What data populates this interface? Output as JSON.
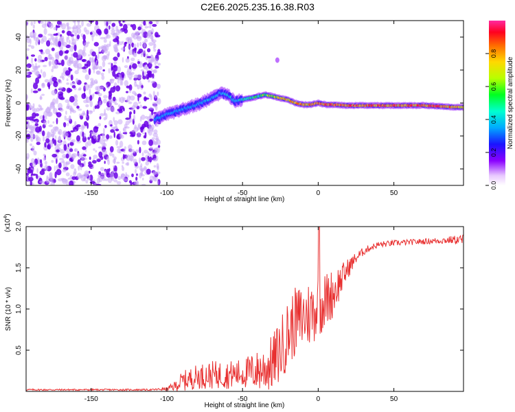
{
  "title": "C2E6.2025.235.16.38.R03",
  "colors": {
    "snr_line": "#e83030",
    "spectrum_purple": "#6a00e6",
    "spectrum_light": "#c9a8f5"
  },
  "chart_data": [
    {
      "type": "heatmap",
      "name": "spectrogram",
      "xlabel": "Height of straight line (km)",
      "ylabel": "Frequency (Hz)",
      "xlim": [
        -193,
        96
      ],
      "ylim": [
        -50,
        50
      ],
      "x_ticks": [
        -150,
        -100,
        -50,
        0,
        50
      ],
      "x_tick_labels": [
        "-150",
        "-100",
        "-50",
        "0",
        "50"
      ],
      "y_ticks": [
        -40,
        -20,
        0,
        20,
        40
      ],
      "y_tick_labels": [
        "-40",
        "-20",
        "0",
        "20",
        "40"
      ],
      "noise_region_x": [
        -193,
        -105
      ],
      "signal_track": {
        "x": [
          -108,
          -100,
          -90,
          -80,
          -70,
          -65,
          -60,
          -55,
          -50,
          -45,
          -40,
          -35,
          -30,
          -25,
          -20,
          -15,
          -10,
          -5,
          0,
          5,
          10,
          20,
          30,
          40,
          50,
          60,
          70,
          80,
          90,
          96
        ],
        "freq": [
          -10,
          -7,
          -4,
          -1,
          3,
          6,
          5,
          1,
          2,
          3,
          4,
          5,
          4,
          3,
          2,
          0,
          -1,
          -1,
          0,
          -1,
          -1,
          -1.5,
          -1.5,
          -1.5,
          -1.5,
          -1.5,
          -1.5,
          -2,
          -2.5,
          -2.5
        ],
        "amplitude": [
          0.25,
          0.3,
          0.35,
          0.4,
          0.45,
          0.45,
          0.5,
          0.5,
          0.55,
          0.6,
          0.6,
          0.65,
          0.7,
          0.75,
          0.8,
          0.8,
          0.85,
          0.85,
          0.9,
          0.9,
          0.9,
          0.9,
          0.9,
          0.9,
          0.9,
          0.9,
          0.9,
          0.9,
          0.85,
          0.85
        ]
      },
      "colorbar": {
        "label": "Normalized spectral amplitude",
        "range": [
          0,
          1
        ],
        "ticks": [
          0.0,
          0.2,
          0.4,
          0.6,
          0.8
        ],
        "tick_labels": [
          "0.0",
          "0.2",
          "0.4",
          "0.6",
          "0.8"
        ]
      }
    },
    {
      "type": "line",
      "name": "snr",
      "xlabel": "Height of straight line (km)",
      "ylabel": "SNR (10 * v/v)",
      "scale_label": "(x10",
      "scale_exponent": "4",
      "scale_close": ")",
      "xlim": [
        -193,
        96
      ],
      "ylim": [
        0,
        2.0
      ],
      "x_ticks": [
        -150,
        -100,
        -50,
        0,
        50
      ],
      "x_tick_labels": [
        "-150",
        "-100",
        "-50",
        "0",
        "50"
      ],
      "y_ticks": [
        0.5,
        1.0,
        1.5,
        2.0
      ],
      "y_tick_labels": [
        "0.5",
        "1.0",
        "1.5",
        "2.0"
      ],
      "baseline_x": [
        -193,
        -110,
        -100,
        -95,
        -90,
        -80,
        -70,
        -60,
        -50,
        -40,
        -35,
        -30,
        -25,
        -20,
        -15,
        -10,
        -5,
        0,
        5,
        10,
        15,
        20,
        25,
        30,
        35,
        40,
        50,
        60,
        70,
        80,
        90,
        96
      ],
      "baseline_y": [
        0.02,
        0.02,
        0.03,
        0.06,
        0.12,
        0.18,
        0.2,
        0.2,
        0.22,
        0.25,
        0.28,
        0.35,
        0.5,
        0.7,
        0.85,
        0.9,
        0.95,
        1.05,
        1.1,
        1.2,
        1.35,
        1.5,
        1.62,
        1.7,
        1.75,
        1.78,
        1.8,
        1.81,
        1.82,
        1.83,
        1.84,
        1.84
      ],
      "noise_x": [
        -193,
        -110,
        -100,
        -95,
        -90,
        -80,
        -70,
        -60,
        -50,
        -40,
        -35,
        -30,
        -25,
        -20,
        -15,
        -10,
        -5,
        0,
        5,
        10,
        15,
        20,
        25,
        30,
        35,
        40,
        50,
        60,
        70,
        80,
        90,
        96
      ],
      "noise_amp": [
        0.01,
        0.01,
        0.02,
        0.06,
        0.12,
        0.15,
        0.17,
        0.17,
        0.18,
        0.25,
        0.3,
        0.35,
        0.4,
        0.42,
        0.42,
        0.42,
        0.42,
        0.4,
        0.35,
        0.3,
        0.2,
        0.12,
        0.07,
        0.05,
        0.04,
        0.04,
        0.035,
        0.035,
        0.035,
        0.04,
        0.05,
        0.07
      ],
      "peak_x": 0.5,
      "peak_y": 2.0
    }
  ]
}
